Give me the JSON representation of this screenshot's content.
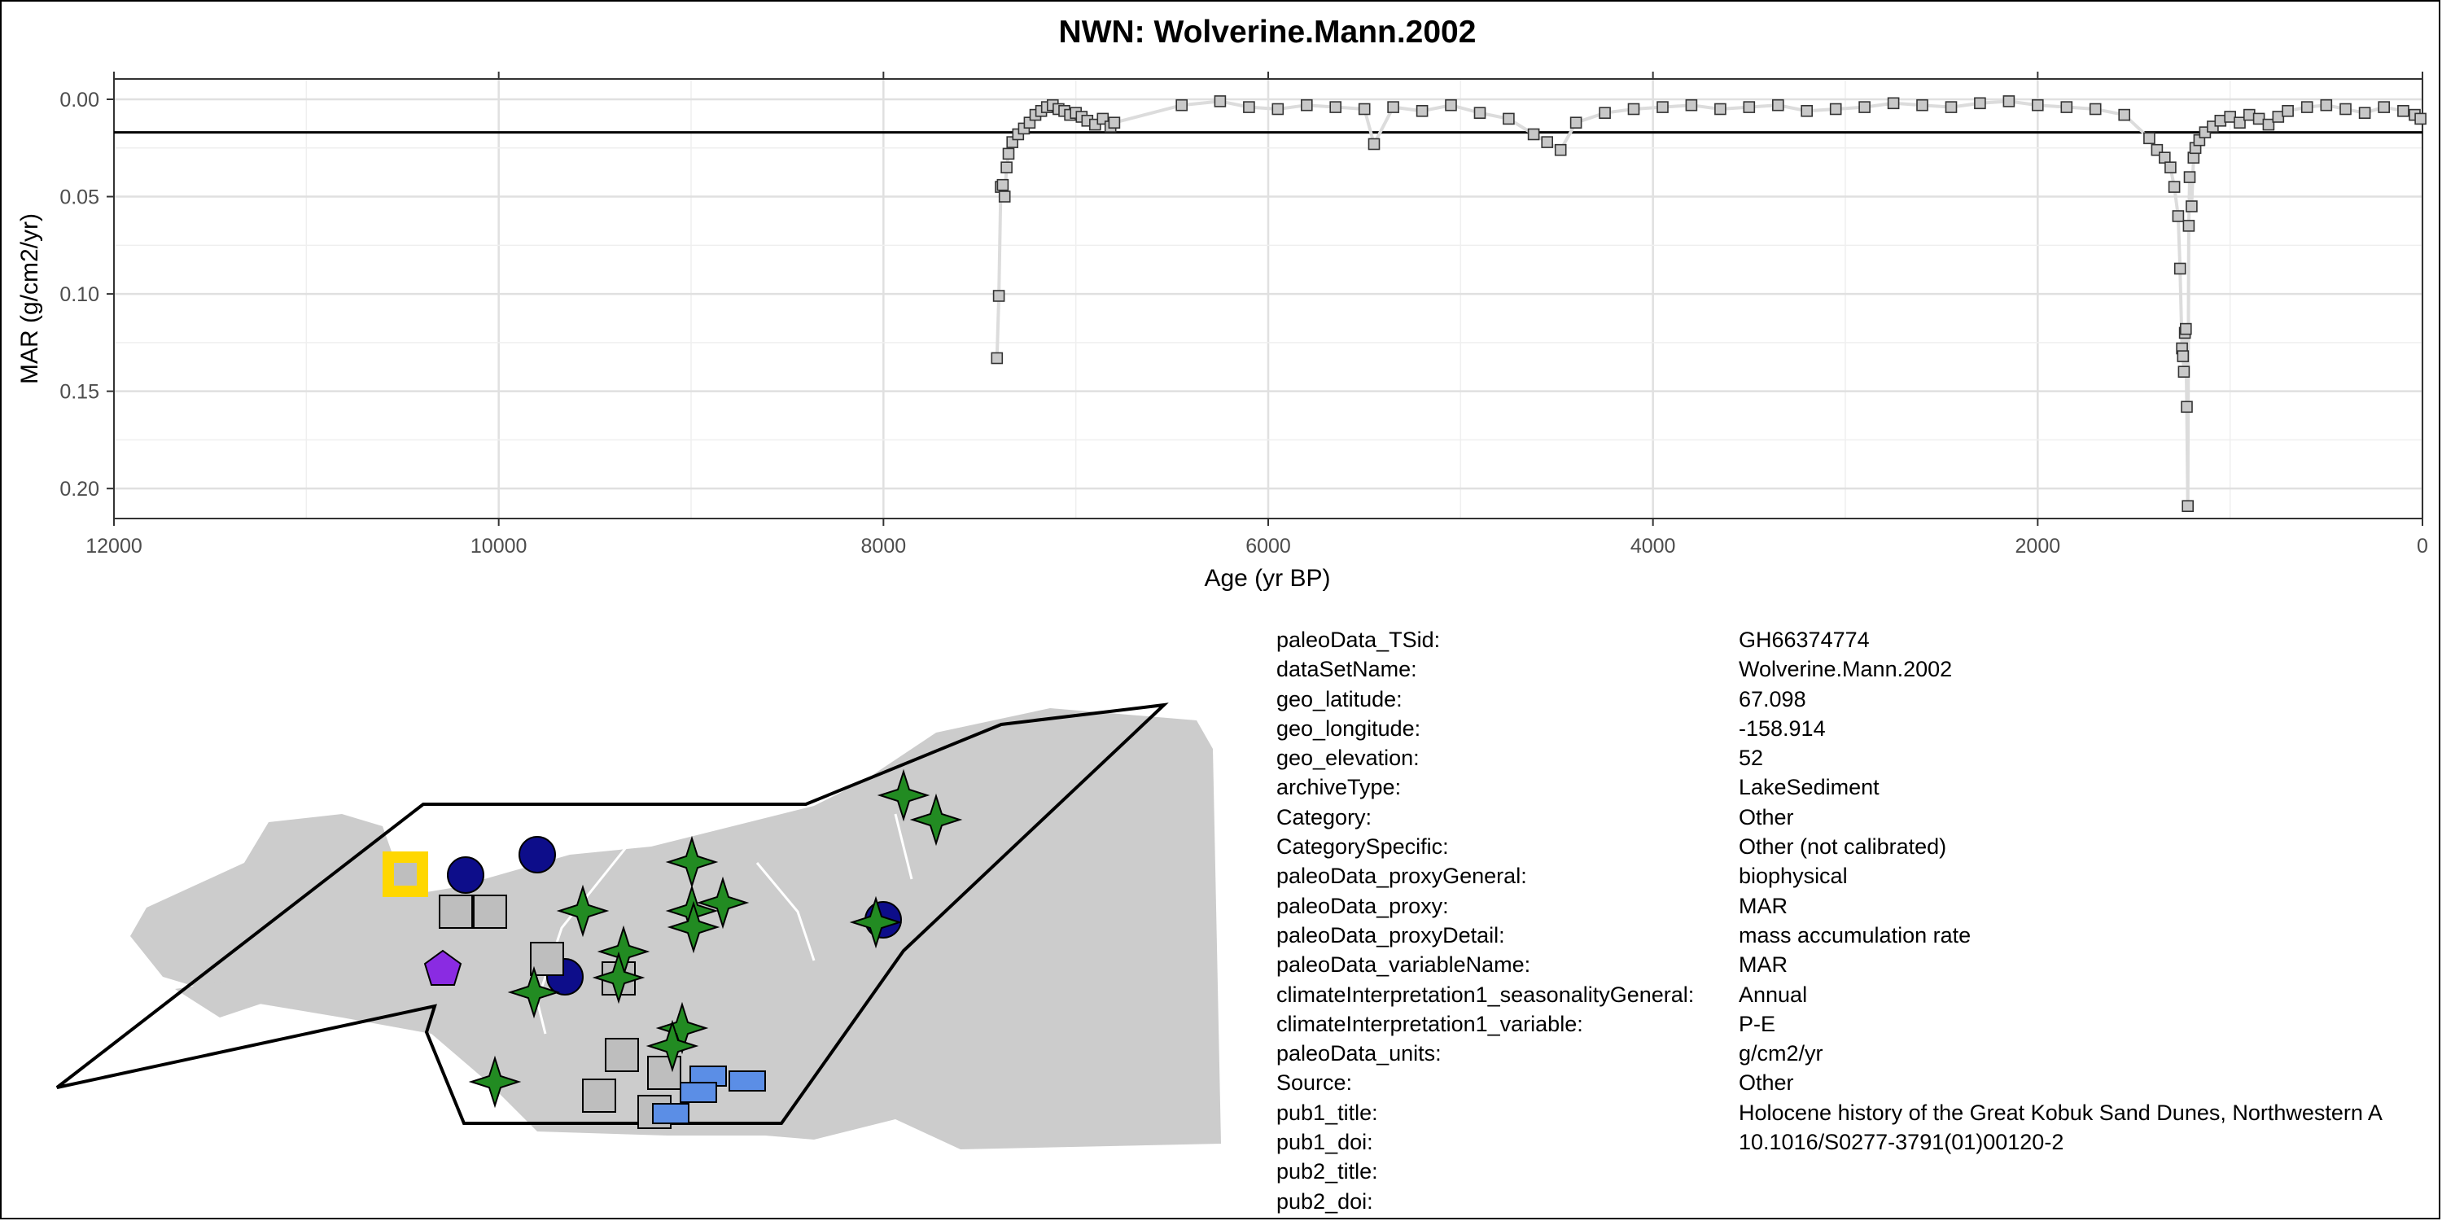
{
  "chart_data": {
    "type": "line",
    "title": "NWN: Wolverine.Mann.2002",
    "xlabel": "Age (yr BP)",
    "ylabel": "MAR (g/cm2/yr)",
    "xlim": [
      12000,
      0
    ],
    "ylim": [
      0.22,
      0.0
    ],
    "x_reversed": true,
    "y_reversed": true,
    "x_ticks": [
      "12000",
      "10000",
      "8000",
      "6000",
      "4000",
      "2000",
      "0"
    ],
    "y_ticks": [
      "0.00",
      "0.05",
      "0.10",
      "0.15",
      "0.20"
    ],
    "grid": true,
    "reference_line": 0.017,
    "marker": "square",
    "marker_color": "#c8c8c8",
    "line_color": "#dcdcdc",
    "series": [
      {
        "x": [
          7410,
          7400,
          7390,
          7380,
          7370,
          7360,
          7350,
          7330,
          7300,
          7270,
          7240,
          7210,
          7180,
          7150,
          7120,
          7090,
          7060,
          7030,
          7000,
          6970,
          6940,
          6900,
          6860,
          6820,
          6800,
          6450,
          6250,
          6100,
          5950,
          5800,
          5650,
          5500,
          5450,
          5350,
          5200,
          5050,
          4900,
          4750,
          4620,
          4550,
          4480,
          4400,
          4250,
          4100,
          3950,
          3800,
          3650,
          3500,
          3350,
          3200,
          3050,
          2900,
          2750,
          2600,
          2450,
          2300,
          2150,
          2000,
          1850,
          1700,
          1550,
          1420,
          1380,
          1340,
          1310,
          1290,
          1270,
          1260,
          1250,
          1245,
          1240,
          1235,
          1230,
          1225,
          1220,
          1215,
          1210,
          1200,
          1190,
          1180,
          1160,
          1130,
          1090,
          1050,
          1000,
          950,
          900,
          850,
          800,
          750,
          700,
          600,
          500,
          400,
          300,
          200,
          100,
          40,
          10
        ],
        "y": [
          0.133,
          0.101,
          0.045,
          0.044,
          0.05,
          0.035,
          0.028,
          0.022,
          0.018,
          0.015,
          0.012,
          0.008,
          0.006,
          0.004,
          0.003,
          0.005,
          0.006,
          0.008,
          0.007,
          0.009,
          0.011,
          0.013,
          0.01,
          0.014,
          0.012,
          0.003,
          0.001,
          0.004,
          0.005,
          0.003,
          0.004,
          0.005,
          0.023,
          0.004,
          0.006,
          0.003,
          0.007,
          0.01,
          0.018,
          0.022,
          0.026,
          0.012,
          0.007,
          0.005,
          0.004,
          0.003,
          0.005,
          0.004,
          0.003,
          0.006,
          0.005,
          0.004,
          0.002,
          0.003,
          0.004,
          0.002,
          0.001,
          0.003,
          0.004,
          0.005,
          0.008,
          0.02,
          0.026,
          0.03,
          0.035,
          0.045,
          0.06,
          0.087,
          0.128,
          0.132,
          0.14,
          0.12,
          0.118,
          0.158,
          0.209,
          0.065,
          0.04,
          0.055,
          0.03,
          0.025,
          0.021,
          0.017,
          0.014,
          0.011,
          0.009,
          0.012,
          0.008,
          0.01,
          0.013,
          0.009,
          0.006,
          0.004,
          0.003,
          0.005,
          0.007,
          0.004,
          0.006,
          0.008,
          0.01
        ]
      }
    ]
  },
  "map": {
    "land_color": "#cccccc",
    "region_outline_color": "#000000",
    "highlight_color": "#ffd700",
    "markers": [
      {
        "shape": "square-highlight",
        "fill": "#bebebe"
      },
      {
        "shape": "circle",
        "fill": "#0d0d8a"
      },
      {
        "shape": "circle",
        "fill": "#0d0d8a"
      },
      {
        "shape": "square",
        "fill": "#bebebe"
      },
      {
        "shape": "square",
        "fill": "#bebebe"
      },
      {
        "shape": "pentagon",
        "fill": "#8a2be2"
      },
      {
        "shape": "star",
        "fill": "#228b22"
      },
      {
        "shape": "star",
        "fill": "#228b22"
      },
      {
        "shape": "star",
        "fill": "#228b22"
      },
      {
        "shape": "rect",
        "fill": "#5b8ee6"
      }
    ]
  },
  "metadata": [
    {
      "key": "paleoData_TSid:",
      "value": "GH66374774"
    },
    {
      "key": "dataSetName:",
      "value": "Wolverine.Mann.2002"
    },
    {
      "key": "geo_latitude:",
      "value": "67.098"
    },
    {
      "key": "geo_longitude:",
      "value": "-158.914"
    },
    {
      "key": "geo_elevation:",
      "value": "52"
    },
    {
      "key": "archiveType:",
      "value": "LakeSediment"
    },
    {
      "key": "Category:",
      "value": "Other"
    },
    {
      "key": "CategorySpecific:",
      "value": "Other (not calibrated)"
    },
    {
      "key": "paleoData_proxyGeneral:",
      "value": "biophysical"
    },
    {
      "key": "paleoData_proxy:",
      "value": "MAR"
    },
    {
      "key": "paleoData_proxyDetail:",
      "value": "mass accumulation rate"
    },
    {
      "key": "paleoData_variableName:",
      "value": "MAR"
    },
    {
      "key": "climateInterpretation1_seasonalityGeneral:",
      "value": "Annual"
    },
    {
      "key": "climateInterpretation1_variable:",
      "value": "P-E"
    },
    {
      "key": "paleoData_units:",
      "value": "g/cm2/yr"
    },
    {
      "key": "Source:",
      "value": "Other"
    },
    {
      "key": "pub1_title:",
      "value": "Holocene history of the Great Kobuk Sand Dunes, Northwestern A"
    },
    {
      "key": "pub1_doi:",
      "value": "10.1016/S0277-3791(01)00120-2"
    },
    {
      "key": "pub2_title:",
      "value": ""
    },
    {
      "key": "pub2_doi:",
      "value": ""
    }
  ]
}
